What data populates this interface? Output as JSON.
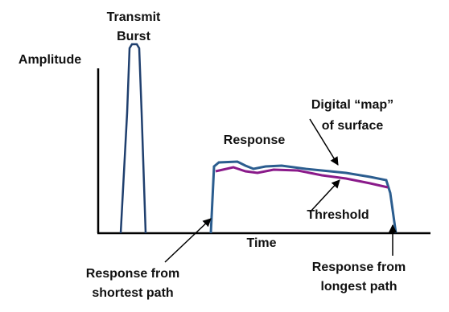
{
  "labels": {
    "y_axis": "Amplitude",
    "x_axis": "Time",
    "transmit": [
      "Transmit",
      "Burst"
    ],
    "response": "Response",
    "map": [
      "Digital “map”",
      "of surface"
    ],
    "threshold": "Threshold",
    "shortest": [
      "Response from",
      "shortest path"
    ],
    "longest": [
      "Response from",
      "longest path"
    ]
  }
}
